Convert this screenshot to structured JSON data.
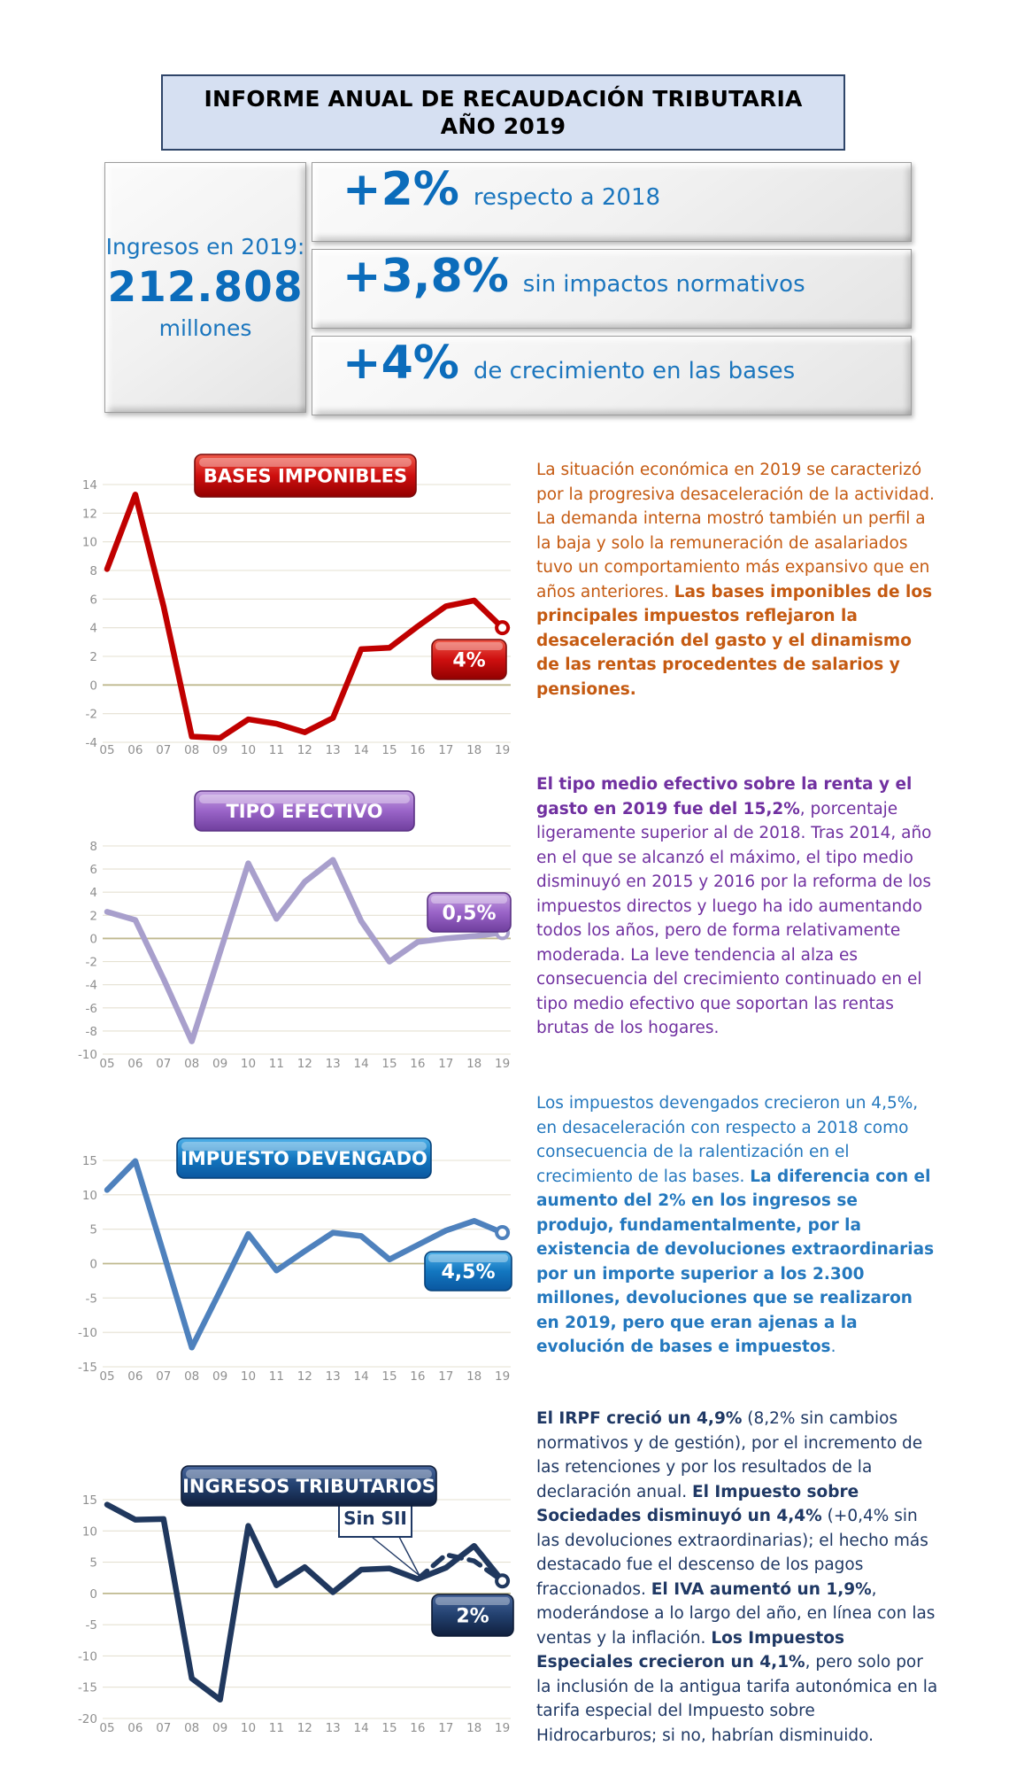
{
  "header": {
    "title_line1": "INFORME ANUAL DE RECAUDACIÓN TRIBUTARIA",
    "title_line2": "AÑO 2019"
  },
  "summary": {
    "income_label_top": "Ingresos en 2019:",
    "income_value": "212.808",
    "income_label_bottom": "millones",
    "accent_color": "#0B6CBB",
    "stats": [
      {
        "value": "+2%",
        "text": "respecto a 2018"
      },
      {
        "value": "+3,8%",
        "text": "sin impactos normativos"
      },
      {
        "value": "+4%",
        "text": "de crecimiento en las bases"
      }
    ]
  },
  "chart_data": [
    {
      "type": "line",
      "title": "BASES IMPONIBLES",
      "categories": [
        "05",
        "06",
        "07",
        "08",
        "09",
        "10",
        "11",
        "12",
        "13",
        "14",
        "15",
        "16",
        "17",
        "18",
        "19"
      ],
      "values": [
        8.1,
        13.3,
        5.5,
        -3.6,
        -3.7,
        -2.4,
        -2.7,
        -3.3,
        -2.3,
        2.5,
        2.6,
        4.1,
        5.5,
        5.9,
        4.0
      ],
      "end_label": "4%",
      "ylim": [
        -4,
        14
      ],
      "ystep": 2,
      "grid": true,
      "line_color": "#C00000",
      "pill_colors": [
        "#EF5A4A",
        "#CE0F0F",
        "#920000"
      ],
      "pill_border": "#7A0A0A"
    },
    {
      "type": "line",
      "title": "TIPO EFECTIVO",
      "categories": [
        "05",
        "06",
        "07",
        "08",
        "09",
        "10",
        "11",
        "12",
        "13",
        "14",
        "15",
        "16",
        "17",
        "18",
        "19"
      ],
      "values": [
        2.3,
        1.6,
        -3.5,
        -8.9,
        -1.2,
        6.5,
        1.7,
        4.9,
        6.8,
        1.5,
        -2.0,
        -0.3,
        0.0,
        0.2,
        0.5
      ],
      "end_label": "0,5%",
      "ylim": [
        -10,
        8
      ],
      "ystep": 2,
      "grid": true,
      "line_color": "#A89FCC",
      "pill_colors": [
        "#C7A5E2",
        "#9A64C8",
        "#6F3F9E"
      ],
      "pill_border": "#5A3184"
    },
    {
      "type": "line",
      "title": "IMPUESTO DEVENGADO",
      "categories": [
        "05",
        "06",
        "07",
        "08",
        "09",
        "10",
        "11",
        "12",
        "13",
        "14",
        "15",
        "16",
        "17",
        "18",
        "19"
      ],
      "values": [
        10.7,
        14.9,
        1.5,
        -12.2,
        -4.0,
        4.3,
        -1.0,
        1.8,
        4.5,
        4.0,
        0.6,
        2.7,
        4.8,
        6.2,
        4.5
      ],
      "end_label": "4,5%",
      "ylim": [
        -15,
        15
      ],
      "ystep": 5,
      "grid": true,
      "line_color": "#4E81BD",
      "pill_colors": [
        "#4FB0E8",
        "#1377C0",
        "#0A57A0"
      ],
      "pill_border": "#07427A"
    },
    {
      "type": "line",
      "title": "INGRESOS TRIBUTARIOS",
      "categories": [
        "05",
        "06",
        "07",
        "08",
        "09",
        "10",
        "11",
        "12",
        "13",
        "14",
        "15",
        "16",
        "17",
        "18",
        "19"
      ],
      "values": [
        14.2,
        11.8,
        11.9,
        -13.6,
        -17.0,
        10.8,
        1.3,
        4.2,
        0.2,
        3.8,
        4.0,
        2.3,
        4.1,
        7.6,
        2.0
      ],
      "end_label": "2%",
      "ylim": [
        -20,
        15
      ],
      "ystep": 5,
      "grid": true,
      "line_color": "#20385E",
      "pill_colors": [
        "#47659B",
        "#22406E",
        "#101F3D"
      ],
      "pill_border": "#0D1B36",
      "annotation": "Sin SII",
      "dashed_series": {
        "name": "Sin SII",
        "start_category": "16",
        "values": [
          2.3,
          6.2,
          5.2,
          2.0
        ]
      }
    }
  ],
  "paragraphs": [
    {
      "color": "#C55A11",
      "segments": [
        {
          "bold": false,
          "text": "La situación económica en 2019 se caracterizó por la progresiva desaceleración de la actividad. La demanda interna mostró también un perfil a la baja y solo la remuneración de asalariados tuvo un comportamiento más expansivo que en años anteriores. "
        },
        {
          "bold": true,
          "text": "Las bases imponibles de los principales impuestos reflejaron la desaceleración del gasto y el dinamismo de las rentas procedentes de salarios y pensiones."
        }
      ]
    },
    {
      "color": "#7030A0",
      "segments": [
        {
          "bold": true,
          "text": "El tipo medio efectivo sobre la renta y el gasto en 2019 fue del 15,2%"
        },
        {
          "bold": false,
          "text": ", porcentaje ligeramente superior al de 2018. Tras 2014, año en el que se alcanzó el máximo, el tipo medio disminuyó en 2015 y 2016 por la reforma de los impuestos directos y luego ha ido aumentando todos los años, pero de forma relativamente moderada. La leve tendencia al alza es consecuencia del crecimiento continuado en el tipo medio efectivo que soportan las rentas brutas de los hogares."
        }
      ]
    },
    {
      "color": "#2478BE",
      "segments": [
        {
          "bold": false,
          "text": "Los impuestos devengados crecieron un 4,5%, en desaceleración con respecto a 2018 como consecuencia de la ralentización en el crecimiento de las bases. "
        },
        {
          "bold": true,
          "text": "La diferencia con el aumento del 2% en los ingresos se produjo, fundamentalmente, por la existencia de devoluciones extraordinarias por un importe superior a los 2.300 millones, devoluciones que se realizaron en 2019, pero que eran ajenas a la evolución de bases e impuestos"
        },
        {
          "bold": false,
          "text": "."
        }
      ]
    },
    {
      "color": "#1F3864",
      "segments": [
        {
          "bold": true,
          "text": "El IRPF creció un 4,9%"
        },
        {
          "bold": false,
          "text": " (8,2% sin cambios normativos y de gestión), por el incremento de las retenciones y por los resultados de la declaración anual. "
        },
        {
          "bold": true,
          "text": "El Impuesto sobre Sociedades disminuyó un 4,4%"
        },
        {
          "bold": false,
          "text": " (+0,4% sin las devoluciones extraordinarias); el hecho más destacado fue el descenso de los pagos fraccionados. "
        },
        {
          "bold": true,
          "text": "El IVA aumentó un 1,9%"
        },
        {
          "bold": false,
          "text": ", moderándose a lo largo del año, en línea con las ventas y la inflación. "
        },
        {
          "bold": true,
          "text": "Los Impuestos Especiales crecieron un 4,1%"
        },
        {
          "bold": false,
          "text": ", pero solo por la inclusión de la antigua tarifa autonómica en la tarifa especial del Impuesto sobre Hidrocarburos; si no, habrían disminuido."
        }
      ]
    }
  ]
}
